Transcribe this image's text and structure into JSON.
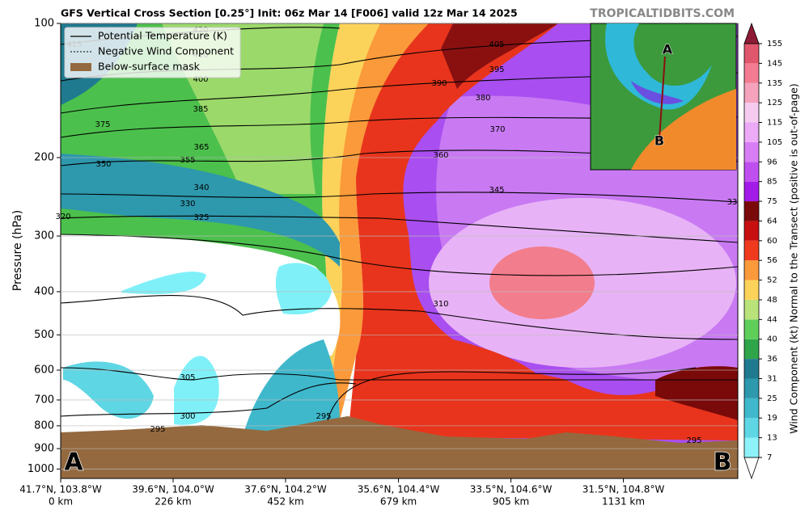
{
  "chart_data": {
    "type": "cross-section",
    "title": "GFS Vertical Cross Section [0.25°] Init: 06z Mar 14 [F006] valid 12z Mar 14 2025",
    "source": "TROPICALTIDBITS.COM",
    "y_label": "Pressure (hPa)",
    "log_y": true,
    "ylim": [
      1050,
      100
    ],
    "yticks": [
      100,
      200,
      300,
      400,
      500,
      600,
      700,
      800,
      900,
      1000
    ],
    "grid": true,
    "xlim": [
      0,
      1361
    ],
    "xticks": [
      {
        "value": 0,
        "label": "0 km"
      },
      {
        "value": 226,
        "label": "226 km"
      },
      {
        "value": 452,
        "label": "452 km"
      },
      {
        "value": 679,
        "label": "679 km"
      },
      {
        "value": 905,
        "label": "905 km"
      },
      {
        "value": 1131,
        "label": "1131 km"
      }
    ],
    "xtick_locations": [
      "41.7°N, 103.8°W",
      "39.6°N, 104.0°W",
      "37.6°N, 104.2°W",
      "35.6°N, 104.4°W",
      "33.5°N, 104.6°W",
      "31.5°N, 104.8°W"
    ],
    "endpoints": [
      "A",
      "B"
    ],
    "legend": {
      "loc": "upper left",
      "entries": [
        "Potential Temperature (K)",
        "Negative Wind Component",
        "Below-surface mask"
      ],
      "colors": [
        "#000000",
        "#000000",
        "#94693f"
      ]
    },
    "colorbar": {
      "label": "Wind Component (kt) Normal to the Transect (positive is out-of-page)",
      "ticks": [
        7,
        13,
        19,
        25,
        31,
        36,
        40,
        44,
        48,
        52,
        56,
        60,
        64,
        75,
        85,
        96,
        105,
        115,
        125,
        135,
        145,
        155
      ],
      "colors": [
        "#ffffff",
        "#8ef3f8",
        "#5fd6e4",
        "#3fb8cc",
        "#2e98ad",
        "#1f7a8f",
        "#2fa54a",
        "#5fcf5a",
        "#b9e27a",
        "#fcd35a",
        "#fb9a3a",
        "#f03a1e",
        "#c81010",
        "#7a0a0a",
        "#a31be8",
        "#c04ff0",
        "#d87ef5",
        "#ecaaf7",
        "#f6cbf0",
        "#f5a3bd",
        "#f37c93",
        "#e0566c",
        "#c0394f",
        "#8e1b35"
      ]
    },
    "contour_labels": [
      415,
      420,
      410,
      400,
      385,
      375,
      365,
      355,
      350,
      340,
      330,
      325,
      320,
      310,
      305,
      300,
      295,
      295,
      295,
      345,
      360,
      370,
      380,
      390,
      395,
      405,
      33
    ],
    "inset_labels": [
      "A",
      "B"
    ]
  }
}
